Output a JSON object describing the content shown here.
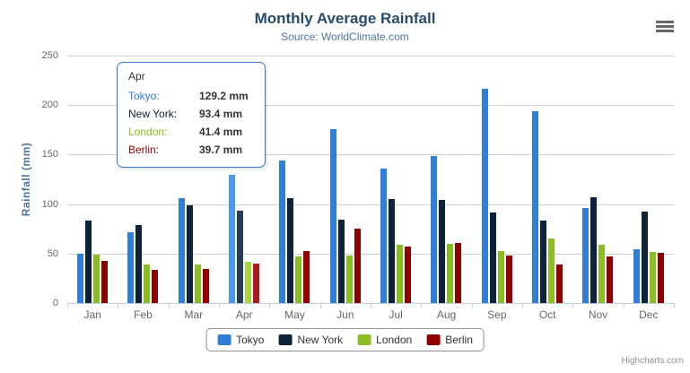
{
  "credits": "Highcharts.com",
  "colors": {
    "title": "#274b6d",
    "subtitle": "#4d759e",
    "axis_title": "#4d759e",
    "axis_label": "#666666",
    "grid": "#d0d0d0",
    "axis_line": "#c0d0e0",
    "tooltip_border": "#2f7ed8",
    "tooltip_text": "#333333",
    "legend_border": "#909090",
    "legend_text": "#333333",
    "credits": "#909090",
    "menu_icon": "#666666",
    "background": "#ffffff"
  },
  "chart_data": {
    "type": "bar",
    "title": "Monthly Average Rainfall",
    "subtitle": "Source: WorldClimate.com",
    "categories": [
      "Jan",
      "Feb",
      "Mar",
      "Apr",
      "May",
      "Jun",
      "Jul",
      "Aug",
      "Sep",
      "Oct",
      "Nov",
      "Dec"
    ],
    "series": [
      {
        "name": "Tokyo",
        "color": "#2f7ed8",
        "values": [
          49.9,
          71.5,
          106.4,
          129.2,
          144.0,
          176.0,
          135.6,
          148.5,
          216.4,
          194.1,
          95.6,
          54.4
        ]
      },
      {
        "name": "New York",
        "color": "#0d233a",
        "values": [
          83.6,
          78.8,
          98.5,
          93.4,
          106.0,
          84.5,
          105.0,
          104.3,
          91.2,
          83.5,
          106.6,
          92.3
        ]
      },
      {
        "name": "London",
        "color": "#8bbc21",
        "values": [
          48.9,
          38.8,
          39.3,
          41.4,
          47.0,
          48.3,
          59.0,
          59.6,
          52.4,
          65.2,
          59.3,
          51.2
        ]
      },
      {
        "name": "Berlin",
        "color": "#910000",
        "values": [
          42.4,
          33.2,
          34.5,
          39.7,
          52.6,
          75.5,
          57.4,
          60.4,
          47.6,
          39.1,
          46.8,
          51.1
        ]
      }
    ],
    "xlabel": "",
    "ylabel": "Rainfall (mm)",
    "ylim": [
      0,
      250
    ],
    "yticks": [
      0,
      50,
      100,
      150,
      200,
      250
    ],
    "grid": true,
    "legend_position": "bottom",
    "hovered_category": "Apr",
    "hovered_category_index": 3
  },
  "tooltip": {
    "category": "Apr",
    "rows": [
      {
        "label": "Tokyo:",
        "value": "129.2 mm",
        "color": "#2f7ed8"
      },
      {
        "label": "New York:",
        "value": "93.4 mm",
        "color": "#0d233a"
      },
      {
        "label": "London:",
        "value": "41.4 mm",
        "color": "#8bbc21"
      },
      {
        "label": "Berlin:",
        "value": "39.7 mm",
        "color": "#910000"
      }
    ]
  },
  "legend": {
    "items": [
      "Tokyo",
      "New York",
      "London",
      "Berlin"
    ]
  }
}
